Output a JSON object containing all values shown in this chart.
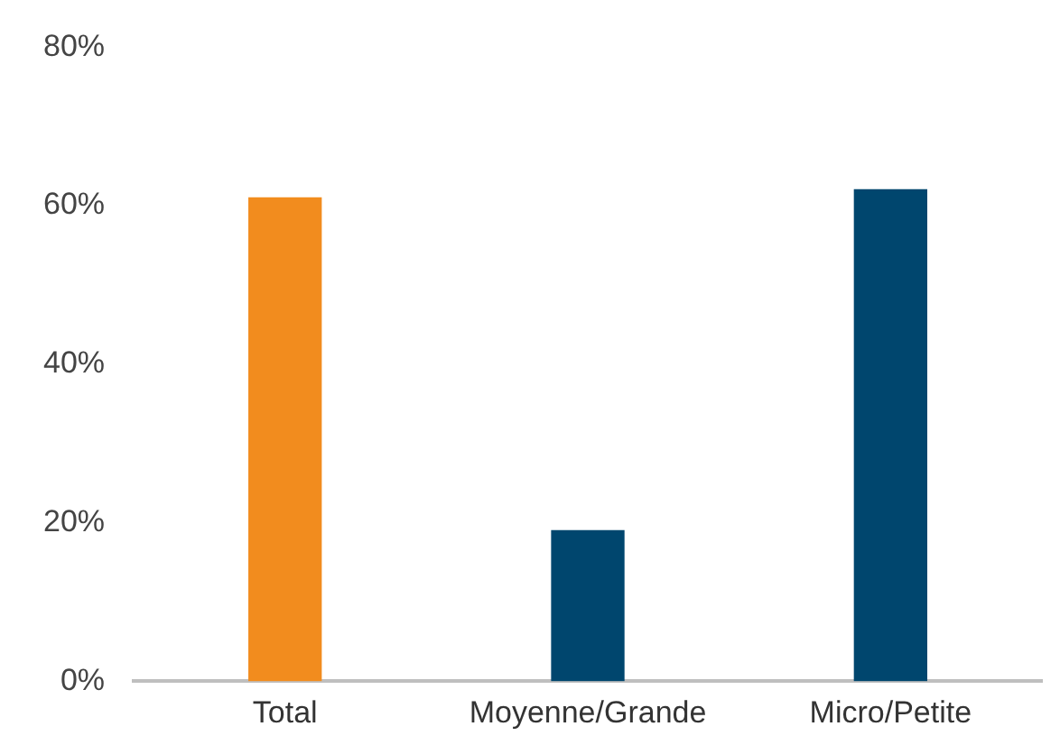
{
  "chart_data": {
    "type": "bar",
    "categories": [
      "Total",
      "Moyenne/Grande",
      "Micro/Petite"
    ],
    "values": [
      61,
      19,
      62
    ],
    "colors": [
      "#f28c1e",
      "#00466e",
      "#00466e"
    ],
    "ylim": [
      0,
      80
    ],
    "yticks": [
      {
        "value": 0,
        "label": "0%"
      },
      {
        "value": 20,
        "label": "20%"
      },
      {
        "value": 40,
        "label": "40%"
      },
      {
        "value": 60,
        "label": "60%"
      },
      {
        "value": 80,
        "label": "80%"
      }
    ],
    "grid": false,
    "legend": false
  }
}
